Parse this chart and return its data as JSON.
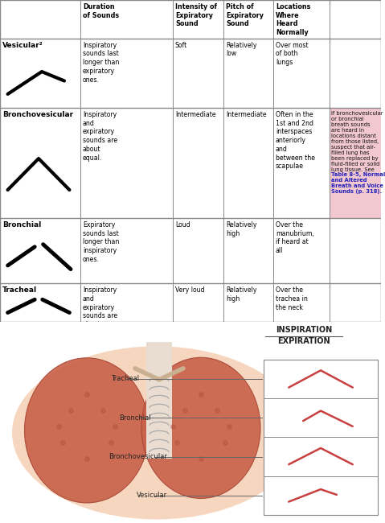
{
  "bg_color": "#f5f5f0",
  "headers": [
    "Duration\nof Sounds",
    "Intensity of\nExpiratory\nSound",
    "Pitch of\nExpiratory\nSound",
    "Locations\nWhere\nHeard\nNormally"
  ],
  "rows": [
    {
      "name": "Vesicular",
      "superscript": true,
      "duration": "Inspiratory\nsounds last\nlonger than\nexpiratory\nones.",
      "intensity": "Soft",
      "pitch": "Relatively\nlow",
      "location": "Over most\nof both\nlungs",
      "note": "",
      "sound_type": "vesicular"
    },
    {
      "name": "Bronchovesicular",
      "superscript": false,
      "duration": "Inspiratory\nand\nexpiratory\nsounds are\nabout\nequal.",
      "intensity": "Intermediate",
      "pitch": "Intermediate",
      "location": "Often in the\n1st and 2nd\ninterspaces\nanteriorly\nand\nbetween the\nscapulae",
      "note_normal": "If bronchovesicular\nor bronchial\nbreath sounds\nare heard in\nlocations distant\nfrom those listed,\nsuspect that air-\nfilled lung has\nbeen replaced by\nfluid-filled or solid\nlung tissue. See\n",
      "note_link": "Table 8-5, Normal\nand Altered\nBreath and Voice\nSounds (p. 318).",
      "sound_type": "bronchovesicular"
    },
    {
      "name": "Bronchial",
      "superscript": false,
      "duration": "Expiratory\nsounds last\nlonger than\ninspiratory\nones.",
      "intensity": "Loud",
      "pitch": "Relatively\nhigh",
      "location": "Over the\nmanubrium,\nif heard at\nall",
      "note": "",
      "sound_type": "bronchial"
    },
    {
      "name": "Tracheal",
      "superscript": false,
      "duration": "Inspiratory\nand\nexpiratory\nsounds are\nabout\nequal.",
      "intensity": "Very loud",
      "pitch": "Relatively\nhigh",
      "location": "Over the\ntrachea in\nthe neck",
      "note": "",
      "sound_type": "tracheal"
    }
  ],
  "pink_bg": "#f2c8d0",
  "link_color": "#2222bb",
  "wave_color_black": "#111111",
  "wave_color_red": "#c84040"
}
